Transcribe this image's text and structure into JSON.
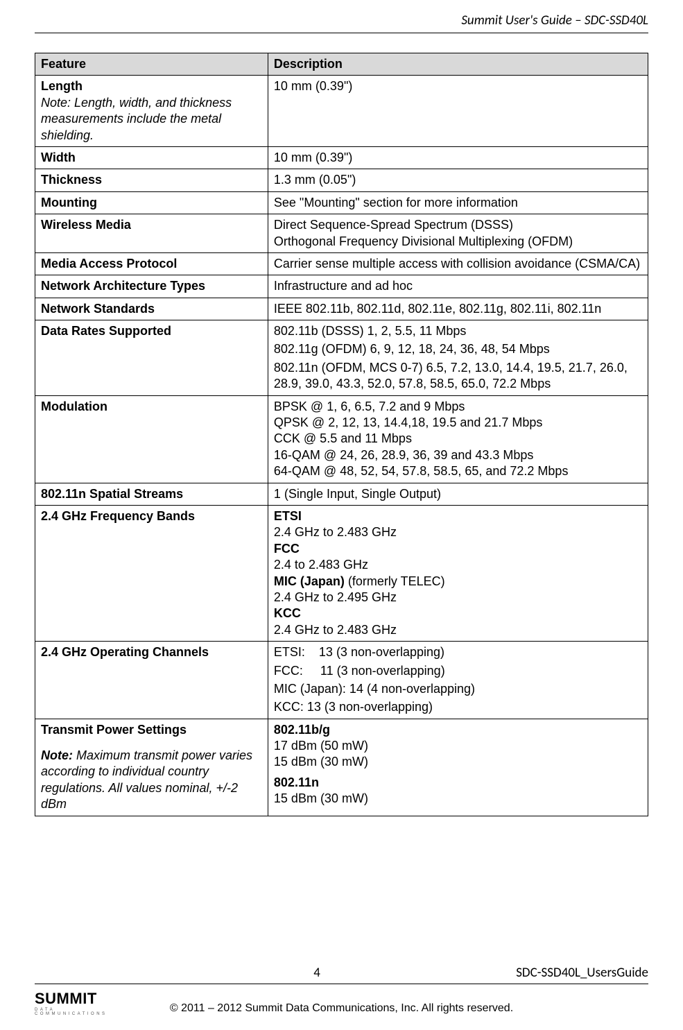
{
  "header": {
    "title": "Summit User's Guide – SDC-SSD40L"
  },
  "table": {
    "headers": {
      "feature": "Feature",
      "description": "Description"
    },
    "rows": [
      {
        "feature": "Length",
        "note": "Note: Length, width, and thickness measurements include the metal shielding.",
        "desc": [
          {
            "text": "10 mm (0.39\")"
          }
        ]
      },
      {
        "feature": "Width",
        "desc": [
          {
            "text": "10 mm (0.39\")"
          }
        ]
      },
      {
        "feature": "Thickness",
        "desc": [
          {
            "text": "1.3 mm (0.05\")"
          }
        ]
      },
      {
        "feature": "Mounting",
        "desc": [
          {
            "text": "See \"Mounting\" section for more information"
          }
        ]
      },
      {
        "feature": "Wireless Media",
        "desc": [
          {
            "text": "Direct Sequence-Spread Spectrum (DSSS)"
          },
          {
            "text": "Orthogonal Frequency Divisional Multiplexing (OFDM)"
          }
        ]
      },
      {
        "feature": "Media Access Protocol",
        "desc": [
          {
            "text": "Carrier sense multiple access with collision avoidance (CSMA/CA)"
          }
        ]
      },
      {
        "feature": "Network Architecture Types",
        "desc": [
          {
            "text": "Infrastructure and ad hoc"
          }
        ]
      },
      {
        "feature": "Network Standards",
        "desc": [
          {
            "text": "IEEE 802.11b, 802.11d, 802.11e, 802.11g, 802.11i, 802.11n"
          }
        ]
      },
      {
        "feature": "Data Rates Supported",
        "desc": [
          {
            "text": "802.11b (DSSS) 1, 2, 5.5, 11 Mbps"
          },
          {
            "text": "802.11g (OFDM) 6, 9, 12, 18, 24, 36, 48, 54 Mbps"
          },
          {
            "text": "802.11n (OFDM, MCS 0-7) 6.5, 7.2, 13.0, 14.4, 19.5, 21.7, 26.0, 28.9, 39.0, 43.3, 52.0, 57.8, 58.5, 65.0, 72.2 Mbps"
          }
        ],
        "spaced": true
      },
      {
        "feature": "Modulation",
        "desc": [
          {
            "text": "BPSK @ 1, 6, 6.5, 7.2 and 9 Mbps"
          },
          {
            "text": "QPSK @ 2, 12, 13, 14.4,18, 19.5 and 21.7 Mbps"
          },
          {
            "text": "CCK @ 5.5 and 11 Mbps"
          },
          {
            "text": "16-QAM @ 24, 26, 28.9, 36, 39 and 43.3 Mbps"
          },
          {
            "text": "64-QAM @ 48, 52, 54, 57.8, 58.5, 65, and 72.2 Mbps"
          }
        ]
      },
      {
        "feature": "802.11n Spatial Streams",
        "desc": [
          {
            "text": "1 (Single Input, Single Output)"
          }
        ]
      },
      {
        "feature": "2.4 GHz Frequency Bands",
        "desc": [
          {
            "bold": "ETSI"
          },
          {
            "text": "2.4 GHz to 2.483 GHz"
          },
          {
            "boldPrefix": "MIC (Japan)",
            "suffix": " (formerly TELEC)",
            "pre": [
              {
                "bold": "FCC"
              },
              {
                "text": "2.4 to 2.483 GHz"
              }
            ]
          },
          {
            "text": "2.4 GHz to 2.495 GHz"
          },
          {
            "bold": "KCC"
          },
          {
            "text": "2.4 GHz to 2.483 GHz"
          }
        ],
        "raw": true
      },
      {
        "feature": "2.4 GHz Operating Channels",
        "desc": [
          {
            "text": "ETSI:    13 (3 non-overlapping)"
          },
          {
            "text": "FCC:     11 (3 non-overlapping)"
          },
          {
            "text": "MIC (Japan): 14 (4 non-overlapping)"
          },
          {
            "text": "KCC: 13 (3 non-overlapping)"
          }
        ],
        "spaced": true,
        "pre": true
      },
      {
        "feature": "Transmit Power Settings",
        "noteHeader": "Note:",
        "noteBody": " Maximum transmit power varies according to individual country regulations. All values nominal, +/-2 dBm",
        "desc": [
          {
            "bold": "802.11b/g"
          },
          {
            "text": "17 dBm (50 mW)"
          },
          {
            "text": "15 dBm (30 mW)"
          },
          {
            "bold": "802.11n",
            "gapBefore": true
          },
          {
            "text": "15 dBm (30 mW)"
          }
        ]
      }
    ]
  },
  "footer": {
    "pageNumber": "4",
    "docName": "SDC-SSD40L_UsersGuide",
    "copyright": "© 2011 – 2012 Summit Data Communications, Inc. All rights reserved.",
    "logoMain": "SUMMIT",
    "logoSub": "DATA COMMUNICATIONS"
  }
}
